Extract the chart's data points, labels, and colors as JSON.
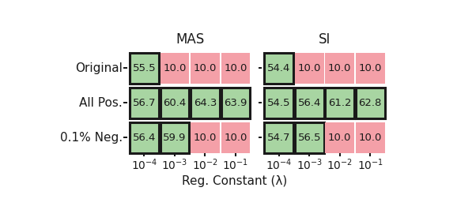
{
  "title_mas": "MAS",
  "title_si": "SI",
  "xlabel": "Reg. Constant (λ)",
  "row_labels": [
    "Original",
    "All Pos.",
    "0.1% Neg."
  ],
  "col_labels": [
    "$10^{-4}$",
    "$10^{-3}$",
    "$10^{-2}$",
    "$10^{-1}$"
  ],
  "mas_values": [
    [
      55.5,
      10.0,
      10.0,
      10.0
    ],
    [
      56.7,
      60.4,
      64.3,
      63.9
    ],
    [
      56.4,
      59.9,
      10.0,
      10.0
    ]
  ],
  "si_values": [
    [
      54.4,
      10.0,
      10.0,
      10.0
    ],
    [
      54.5,
      56.4,
      61.2,
      62.8
    ],
    [
      54.7,
      56.5,
      10.0,
      10.0
    ]
  ],
  "green_color": "#a8d5a2",
  "pink_color": "#f4a0a8",
  "border_color": "#1a1a1a",
  "text_color": "#1a1a1a",
  "bg_color": "#ffffff",
  "threshold": 11.0
}
